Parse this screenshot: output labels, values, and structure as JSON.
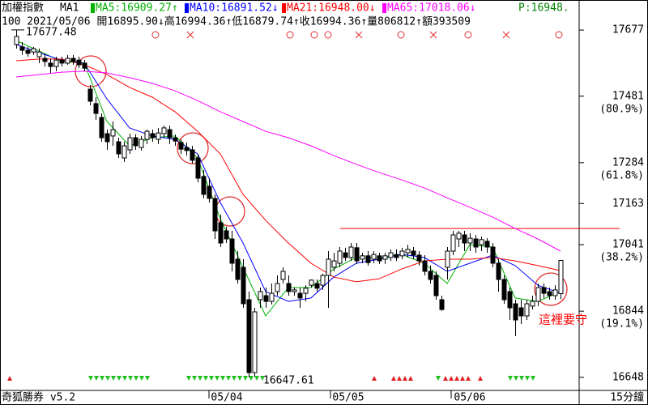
{
  "chart_data": {
    "type": "candlestick",
    "title": "加權指數",
    "indicator": "MA1",
    "p_label": "P:16948.",
    "info": "100 2021/05/06 開16895.90↓高16994.36↑低16879.74↑收16994.36↑量806812↑額393509",
    "ylim": [
      16614,
      17730
    ],
    "yticks": [
      17677,
      17481,
      17284,
      17163,
      17041,
      16844,
      16648
    ],
    "ytick_notes": [
      {
        "value": 17481,
        "label": "(80.9%)"
      },
      {
        "value": 17284,
        "label": "(61.8%)"
      },
      {
        "value": 17041,
        "label": "(38.2%)"
      },
      {
        "value": 16844,
        "label": "(19.1%)"
      }
    ],
    "x_labels": [
      "05/04",
      "05/05",
      "05/06"
    ],
    "footer": "奇狐勝券 v5.2",
    "interval": "15分鐘",
    "annotations": [
      {
        "value": 17677.48,
        "label": "17677.48"
      },
      {
        "value": 16647.61,
        "label": "16647.61"
      },
      {
        "label": "這裡要守",
        "color": "#ff0000"
      }
    ],
    "hline": {
      "value": 17089,
      "color": "#ff0000"
    },
    "ohlc": [
      [
        17634,
        17677.48,
        17622,
        17658
      ],
      [
        17627,
        17641,
        17603,
        17617
      ],
      [
        17617,
        17627,
        17598,
        17608
      ],
      [
        17612,
        17627,
        17603,
        17622
      ],
      [
        17598,
        17622,
        17579,
        17612
      ],
      [
        17593,
        17608,
        17569,
        17584
      ],
      [
        17579,
        17593,
        17550,
        17569
      ],
      [
        17569,
        17598,
        17555,
        17588
      ],
      [
        17588,
        17598,
        17569,
        17579
      ],
      [
        17579,
        17603,
        17574,
        17593
      ],
      [
        17593,
        17603,
        17574,
        17584
      ],
      [
        17588,
        17598,
        17564,
        17574
      ],
      [
        17579,
        17588,
        17555,
        17564
      ],
      [
        17502,
        17514,
        17454,
        17466
      ],
      [
        17459,
        17478,
        17411,
        17430
      ],
      [
        17418,
        17430,
        17346,
        17358
      ],
      [
        17370,
        17382,
        17322,
        17346
      ],
      [
        17363,
        17406,
        17334,
        17382
      ],
      [
        17346,
        17358,
        17298,
        17310
      ],
      [
        17298,
        17346,
        17286,
        17334
      ],
      [
        17322,
        17370,
        17310,
        17358
      ],
      [
        17358,
        17368,
        17322,
        17334
      ],
      [
        17329,
        17363,
        17320,
        17353
      ],
      [
        17353,
        17382,
        17339,
        17377
      ],
      [
        17370,
        17382,
        17346,
        17358
      ],
      [
        17353,
        17387,
        17339,
        17372
      ],
      [
        17370,
        17394,
        17358,
        17387
      ],
      [
        17382,
        17394,
        17339,
        17358
      ],
      [
        17358,
        17368,
        17334,
        17348
      ],
      [
        17344,
        17353,
        17310,
        17324
      ],
      [
        17329,
        17344,
        17305,
        17320
      ],
      [
        17322,
        17334,
        17281,
        17291
      ],
      [
        17298,
        17310,
        17226,
        17238
      ],
      [
        17243,
        17262,
        17178,
        17190
      ],
      [
        17214,
        17238,
        17166,
        17178
      ],
      [
        17178,
        17190,
        17058,
        17082
      ],
      [
        17106,
        17130,
        17034,
        17046
      ],
      [
        17082,
        17094,
        17046,
        17058
      ],
      [
        17058,
        17082,
        16962,
        16986
      ],
      [
        16998,
        17022,
        16926,
        16938
      ],
      [
        16974,
        16998,
        16854,
        16866
      ],
      [
        16878,
        16902,
        16647.61,
        16662
      ],
      [
        16662,
        16854,
        16650,
        16842
      ],
      [
        16878,
        16914,
        16854,
        16902
      ],
      [
        16890,
        16914,
        16854,
        16873
      ],
      [
        16873,
        16926,
        16864,
        16897
      ],
      [
        16902,
        16950,
        16890,
        16926
      ],
      [
        16938,
        16974,
        16926,
        16962
      ],
      [
        16926,
        16950,
        16890,
        16902
      ],
      [
        16902,
        16914,
        16890,
        16907
      ],
      [
        16897,
        16914,
        16854,
        16883
      ],
      [
        16897,
        16921,
        16873,
        16912
      ],
      [
        16921,
        16938,
        16914,
        16936
      ],
      [
        16926,
        16938,
        16902,
        16912
      ],
      [
        16921,
        16955,
        16907,
        16950
      ],
      [
        16950,
        17022,
        16854,
        16998
      ],
      [
        16974,
        17017,
        16962,
        16993
      ],
      [
        16986,
        17034,
        16974,
        17022
      ],
      [
        17017,
        17032,
        16993,
        17003
      ],
      [
        17003,
        17046,
        16993,
        17034
      ],
      [
        17032,
        17046,
        16984,
        16993
      ],
      [
        16998,
        17017,
        16986,
        17008
      ],
      [
        17008,
        17022,
        16979,
        16988
      ],
      [
        16998,
        17022,
        16986,
        17012
      ],
      [
        17008,
        17017,
        16984,
        16993
      ],
      [
        16998,
        17017,
        16984,
        17008
      ],
      [
        17003,
        17027,
        16993,
        17017
      ],
      [
        17012,
        17027,
        16993,
        17003
      ],
      [
        17008,
        17032,
        16998,
        17022
      ],
      [
        17017,
        17041,
        17003,
        17027
      ],
      [
        17022,
        17034,
        16998,
        17010
      ],
      [
        17010,
        17022,
        16979,
        16993
      ],
      [
        16993,
        17010,
        16950,
        16962
      ],
      [
        16962,
        16979,
        16926,
        16938
      ],
      [
        16950,
        16962,
        16878,
        16890
      ],
      [
        16878,
        16890,
        16845,
        16849
      ],
      [
        16974,
        17034,
        16938,
        17022
      ],
      [
        17022,
        17082,
        17010,
        17070
      ],
      [
        17058,
        17082,
        17034,
        17075
      ],
      [
        17070,
        17082,
        17022,
        17046
      ],
      [
        17046,
        17075,
        17022,
        17060
      ],
      [
        17058,
        17070,
        17017,
        17034
      ],
      [
        17041,
        17065,
        17022,
        17056
      ],
      [
        17051,
        17060,
        17017,
        17034
      ],
      [
        17034,
        17046,
        16974,
        16986
      ],
      [
        16986,
        16998,
        16902,
        16938
      ],
      [
        16938,
        16950,
        16866,
        16878
      ],
      [
        16902,
        16914,
        16818,
        16854
      ],
      [
        16866,
        16878,
        16770,
        16818
      ],
      [
        16854,
        16878,
        16806,
        16830
      ],
      [
        16830,
        16878,
        16818,
        16866
      ],
      [
        16859,
        16890,
        16849,
        16873
      ],
      [
        16873,
        16926,
        16859,
        16914
      ],
      [
        16914,
        16926,
        16883,
        16897
      ],
      [
        16902,
        16914,
        16878,
        16890
      ],
      [
        16890,
        16921,
        16878,
        16907
      ],
      [
        16895.9,
        16994.36,
        16879.74,
        16994.36
      ]
    ],
    "up_color": "#ffffff",
    "down_color": "#000000",
    "ma_x": [
      0,
      4,
      8,
      12,
      16,
      20,
      24,
      28,
      32,
      36,
      40,
      44,
      48,
      52,
      56,
      60,
      64,
      68,
      72,
      76,
      80,
      84,
      88,
      92,
      96
    ],
    "series": [
      {
        "name": "MA5:16909.27↑",
        "color": "#00b000",
        "values": [
          17646,
          17615,
          17584,
          17579,
          17406,
          17334,
          17358,
          17363,
          17298,
          17118,
          16974,
          16830,
          16914,
          16914,
          16969,
          17003,
          17003,
          17012,
          16986,
          16926,
          17041,
          17034,
          16883,
          16873,
          16902
        ]
      },
      {
        "name": "MA10:16891.52↓",
        "color": "#0000ff",
        "values": [
          17634,
          17610,
          17588,
          17579,
          17473,
          17387,
          17363,
          17353,
          17310,
          17166,
          17046,
          16902,
          16873,
          16883,
          16945,
          16986,
          16998,
          17012,
          17003,
          16962,
          16986,
          17010,
          16979,
          16921,
          16897
        ]
      },
      {
        "name": "MA21:16948.00↓",
        "color": "#ff0000",
        "values": [
          17586,
          17591,
          17591,
          17574,
          17545,
          17507,
          17478,
          17435,
          17377,
          17310,
          17190,
          17113,
          17046,
          16986,
          16945,
          16931,
          16940,
          16969,
          16993,
          16998,
          16998,
          17003,
          16993,
          16979,
          16964
        ]
      },
      {
        "name": "MA65:17018.06↓",
        "color": "#ff00ff",
        "values": [
          17538,
          17545,
          17552,
          17555,
          17550,
          17536,
          17519,
          17497,
          17468,
          17435,
          17406,
          17377,
          17358,
          17334,
          17305,
          17279,
          17255,
          17233,
          17209,
          17180,
          17152,
          17123,
          17089,
          17058,
          17022
        ]
      }
    ]
  }
}
